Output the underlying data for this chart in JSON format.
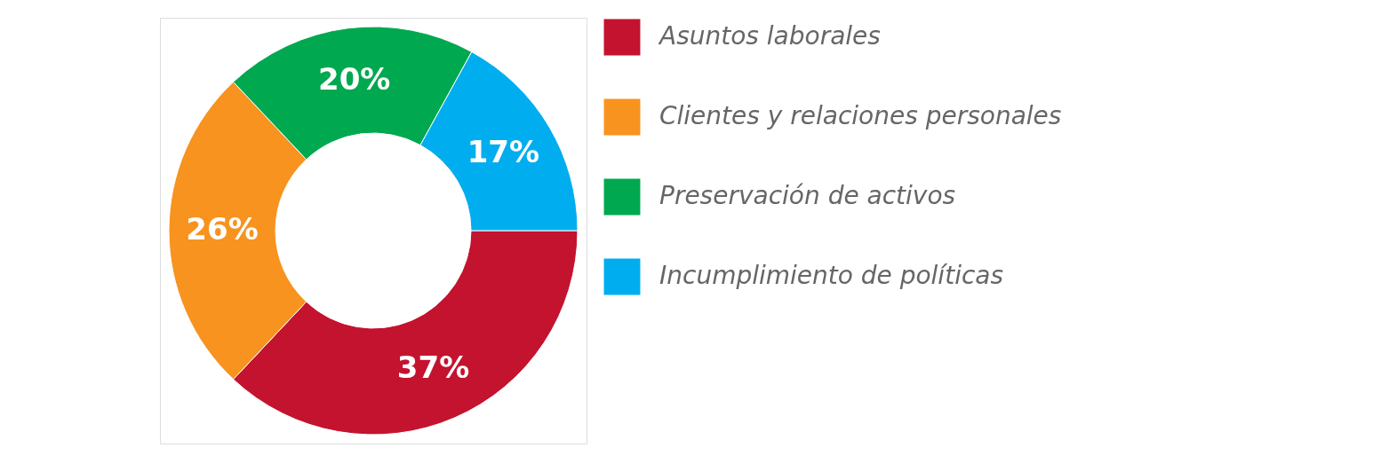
{
  "chart_data": {
    "type": "donut",
    "categories": [
      "Asuntos laborales",
      "Clientes y relaciones personales",
      "Preservación de activos",
      "Incumplimiento de políticas"
    ],
    "values": [
      37,
      26,
      20,
      17
    ],
    "colors": [
      "#c3132f",
      "#f7931e",
      "#00a84f",
      "#00aeef"
    ],
    "value_labels": [
      "37%",
      "26%",
      "20%",
      "17%"
    ],
    "legend": "right"
  }
}
